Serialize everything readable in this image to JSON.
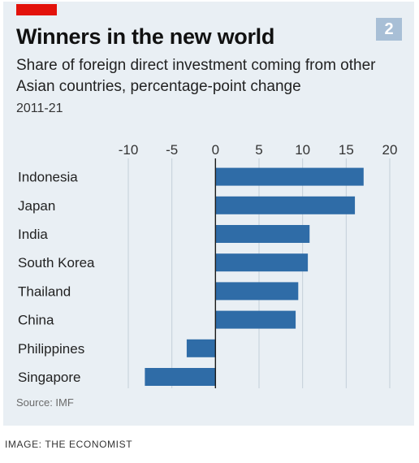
{
  "header": {
    "title": "Winners in the new world",
    "subtitle": "Share of foreign direct investment coming from other Asian countries, percentage-point change",
    "period": "2011-21",
    "badge": "2"
  },
  "footer": {
    "source": "Source: IMF",
    "credit": "IMAGE: THE ECONOMIST"
  },
  "colors": {
    "bar": "#2f6ca7",
    "background": "#e9eff4",
    "accent": "#e3120b"
  },
  "chart_data": {
    "type": "bar",
    "orientation": "horizontal",
    "categories": [
      "Indonesia",
      "Japan",
      "India",
      "South Korea",
      "Thailand",
      "China",
      "Philippines",
      "Singapore"
    ],
    "values": [
      17,
      16,
      10.8,
      10.6,
      9.5,
      9.2,
      -3.3,
      -8.1
    ],
    "xticks": [
      -10,
      -5,
      0,
      5,
      10,
      15,
      20
    ],
    "xlim": [
      -10,
      20
    ],
    "grid": true
  }
}
